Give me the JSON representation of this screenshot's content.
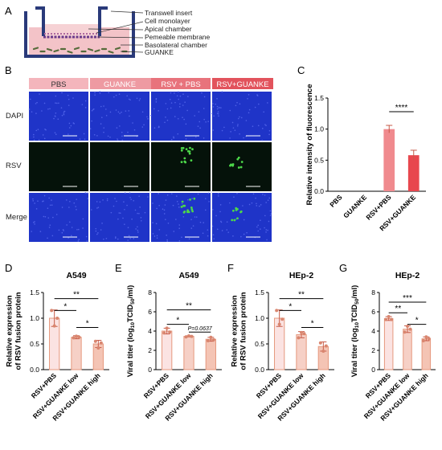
{
  "panel_labels": {
    "a": "A",
    "b": "B",
    "c": "C",
    "d": "D",
    "e": "E",
    "f": "F",
    "g": "G"
  },
  "schematic": {
    "labels": [
      "Transwell insert",
      "Cell monolayer",
      "Apical chamber",
      "Pemeable membrane",
      "Basolateral chamber",
      "GUANKE"
    ],
    "colors": {
      "wall": "#2a3a7a",
      "medium": "#f3c3c8",
      "membrane": "#6a3a8a",
      "particles": "#556b3a"
    }
  },
  "micrographs": {
    "column_headers": [
      "PBS",
      "GUANKE",
      "RSV + PBS",
      "RSV+GUANKE"
    ],
    "header_colors": [
      "#f4b5bc",
      "#ee9aa2",
      "#e8737c",
      "#e2535c"
    ],
    "row_labels": [
      "DAPI",
      "RSV",
      "Merge"
    ],
    "colors": {
      "dapi": "#1f34c8",
      "rsv": "#4dd84a"
    }
  },
  "chart_data": [
    {
      "id": "C",
      "type": "bar",
      "ylabel": "Relative intensity of fluorescence",
      "categories": [
        "PBS",
        "GUANKE",
        "RSV+PBS",
        "RSV+GUANKE"
      ],
      "values": [
        0.0,
        0.0,
        1.0,
        0.58
      ],
      "errors": [
        0.0,
        0.0,
        0.06,
        0.08
      ],
      "ylim": [
        0,
        1.5
      ],
      "yticks": [
        "0.0",
        "0.5",
        "1.0",
        "1.5"
      ],
      "colors": [
        "#f7b6bd",
        "#f7b6bd",
        "#f08a8e",
        "#e8474e"
      ],
      "significance": [
        {
          "from": 2,
          "to": 3,
          "label": "****"
        }
      ]
    },
    {
      "id": "D",
      "type": "bar",
      "title": "A549",
      "ylabel": "Relative expression of RSV fusion protein",
      "categories": [
        "RSV+PBS",
        "RSV+GUANKE low",
        "RSV+GUANKE high"
      ],
      "values": [
        1.0,
        0.63,
        0.5
      ],
      "errors": [
        0.16,
        0.03,
        0.07
      ],
      "points": [
        [
          1.15,
          0.85,
          1.0
        ],
        [
          0.62,
          0.65,
          0.63
        ],
        [
          0.55,
          0.42,
          0.52
        ]
      ],
      "ylim": [
        0,
        1.5
      ],
      "yticks": [
        "0.0",
        "0.5",
        "1.0",
        "1.5"
      ],
      "colors": [
        "#fbe3e2",
        "#f6d0c6",
        "#f4c4b4"
      ],
      "edge": "#e6997e",
      "significance": [
        {
          "from": 0,
          "to": 1,
          "label": "*"
        },
        {
          "from": 1,
          "to": 2,
          "label": "*"
        },
        {
          "from": 0,
          "to": 2,
          "label": "**"
        }
      ]
    },
    {
      "id": "E",
      "type": "bar",
      "title": "A549",
      "ylabel": "Viral titer (log10TCID50/ml)",
      "ylabel_main": "Viral titer (log",
      "ylabel_sub1": "10",
      "ylabel_mid": "TCID",
      "ylabel_sub2": "50",
      "ylabel_end": "/ml)",
      "categories": [
        "RSV+PBS",
        "RSV+GUANKE low",
        "RSV+GUANKE high"
      ],
      "values": [
        4.0,
        3.45,
        3.15
      ],
      "errors": [
        0.3,
        0.06,
        0.2
      ],
      "points": [
        [
          3.8,
          4.3,
          3.9
        ],
        [
          3.4,
          3.5,
          3.45
        ],
        [
          3.0,
          3.35,
          3.1
        ]
      ],
      "ylim": [
        0,
        8
      ],
      "yticks": [
        "0",
        "2",
        "4",
        "6",
        "8"
      ],
      "colors": [
        "#fbe3e2",
        "#f6d0c6",
        "#f4c4b4"
      ],
      "edge": "#e6997e",
      "significance": [
        {
          "from": 0,
          "to": 1,
          "label": "*"
        },
        {
          "from": 1,
          "to": 2,
          "label": "P=0.0637"
        },
        {
          "from": 0,
          "to": 2,
          "label": "**"
        }
      ]
    },
    {
      "id": "F",
      "type": "bar",
      "title": "HEp-2",
      "ylabel": "Relative expression of RSV fusion protein",
      "categories": [
        "RSV+PBS",
        "RSV+GUANKE low",
        "RSV+GUANKE high"
      ],
      "values": [
        1.0,
        0.68,
        0.45
      ],
      "errors": [
        0.16,
        0.06,
        0.09
      ],
      "points": [
        [
          1.15,
          0.88,
          0.98
        ],
        [
          0.62,
          0.72,
          0.7
        ],
        [
          0.52,
          0.36,
          0.46
        ]
      ],
      "ylim": [
        0,
        1.5
      ],
      "yticks": [
        "0.0",
        "0.5",
        "1.0",
        "1.5"
      ],
      "colors": [
        "#fbe3e2",
        "#f6d0c6",
        "#f4c4b4"
      ],
      "edge": "#e6997e",
      "significance": [
        {
          "from": 0,
          "to": 1,
          "label": "*"
        },
        {
          "from": 1,
          "to": 2,
          "label": "*"
        },
        {
          "from": 0,
          "to": 2,
          "label": "**"
        }
      ]
    },
    {
      "id": "G",
      "type": "bar",
      "title": "HEp-2",
      "ylabel": "Viral titer (log10TCID50/ml)",
      "ylabel_main": "Viral titer (log",
      "ylabel_sub1": "10",
      "ylabel_mid": "TCID",
      "ylabel_sub2": "50",
      "ylabel_end": "/ml)",
      "categories": [
        "RSV+PBS",
        "RSV+GUANKE low",
        "RSV+GUANKE high"
      ],
      "values": [
        5.3,
        4.2,
        3.2
      ],
      "errors": [
        0.2,
        0.35,
        0.2
      ],
      "points": [
        [
          5.2,
          5.5,
          5.2
        ],
        [
          3.9,
          4.5,
          4.2
        ],
        [
          3.0,
          3.4,
          3.2
        ]
      ],
      "ylim": [
        0,
        8
      ],
      "yticks": [
        "0",
        "2",
        "4",
        "6",
        "8"
      ],
      "colors": [
        "#fbe3e2",
        "#f6d0c6",
        "#f4c4b4"
      ],
      "edge": "#e6997e",
      "significance": [
        {
          "from": 1,
          "to": 2,
          "label": "*"
        },
        {
          "from": 0,
          "to": 1,
          "label": "**"
        },
        {
          "from": 0,
          "to": 2,
          "label": "***"
        }
      ]
    }
  ]
}
